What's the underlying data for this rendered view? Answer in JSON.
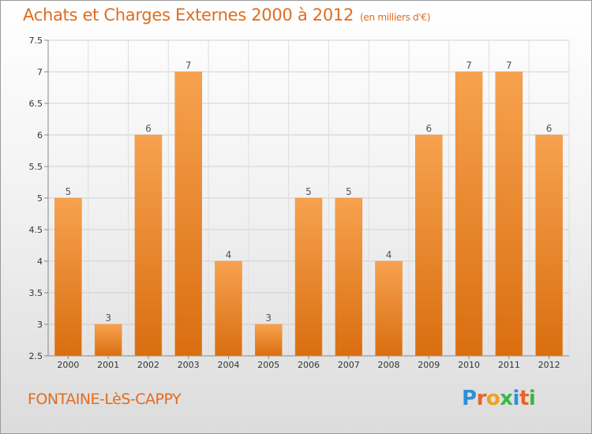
{
  "header": {
    "title": "Achats et Charges Externes 2000 à 2012",
    "unit": "(en milliers d'€)"
  },
  "footer": {
    "commune": "FONTAINE-LèS-CAPPY",
    "logo_letters": [
      "P",
      "r",
      "o",
      "x",
      "i",
      "t",
      "i"
    ],
    "logo_colors": [
      "#2f8fd8",
      "#e8632a",
      "#f0a020",
      "#3bb54a",
      "#2f8fd8",
      "#e8632a",
      "#3bb54a"
    ]
  },
  "colors": {
    "bar_light": "#f7a24f",
    "bar_dark": "#d96e10",
    "text_orange": "#e06c20"
  },
  "chart_data": {
    "type": "bar",
    "title": "Achats et Charges Externes 2000 à 2012",
    "categories": [
      "2000",
      "2001",
      "2002",
      "2003",
      "2004",
      "2005",
      "2006",
      "2007",
      "2008",
      "2009",
      "2010",
      "2011",
      "2012"
    ],
    "values": [
      5,
      3,
      6,
      7,
      4,
      3,
      5,
      5,
      4,
      6,
      7,
      7,
      6
    ],
    "data_labels": [
      "5",
      "3",
      "6",
      "7",
      "4",
      "3",
      "5",
      "5",
      "4",
      "6",
      "7",
      "7",
      "6"
    ],
    "ylim": [
      2.5,
      7.5
    ],
    "yticks": [
      "2.5",
      "3",
      "3.5",
      "4",
      "4.5",
      "5",
      "5.5",
      "6",
      "6.5",
      "7",
      "7.5"
    ],
    "grid": true
  }
}
